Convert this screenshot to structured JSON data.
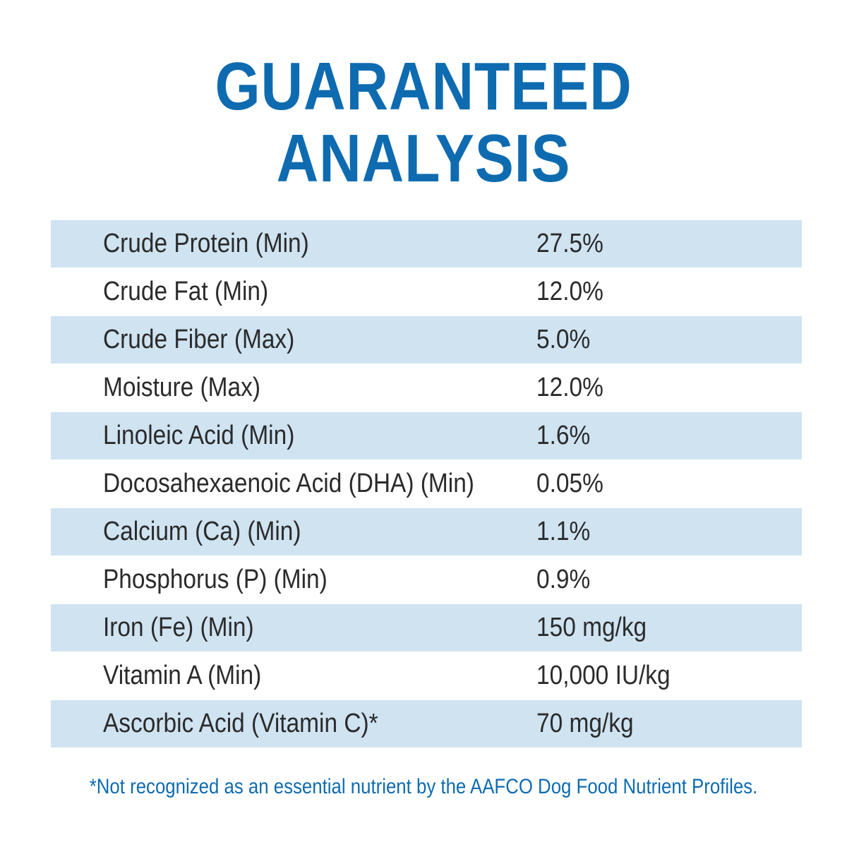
{
  "title": {
    "line1": "GUARANTEED",
    "line2": "ANALYSIS"
  },
  "rows": [
    {
      "label": "Crude Protein (Min)",
      "value": "27.5%"
    },
    {
      "label": "Crude Fat (Min)",
      "value": "12.0%"
    },
    {
      "label": "Crude Fiber (Max)",
      "value": "5.0%"
    },
    {
      "label": "Moisture (Max)",
      "value": "12.0%"
    },
    {
      "label": "Linoleic Acid (Min)",
      "value": "1.6%"
    },
    {
      "label": "Docosahexaenoic Acid (DHA) (Min)",
      "value": "0.05%"
    },
    {
      "label": "Calcium (Ca) (Min)",
      "value": "1.1%"
    },
    {
      "label": "Phosphorus (P) (Min)",
      "value": "0.9%"
    },
    {
      "label": "Iron (Fe) (Min)",
      "value": "150 mg/kg"
    },
    {
      "label": "Vitamin A (Min)",
      "value": "10,000 IU/kg"
    },
    {
      "label": "Ascorbic Acid (Vitamin C)*",
      "value": "70 mg/kg"
    }
  ],
  "footnote": "*Not recognized as an essential nutrient by the AAFCO Dog Food Nutrient Profiles.",
  "colors": {
    "title": "#0e6bb0",
    "stripe": "#cfe3f1",
    "text": "#2b2b2b"
  }
}
